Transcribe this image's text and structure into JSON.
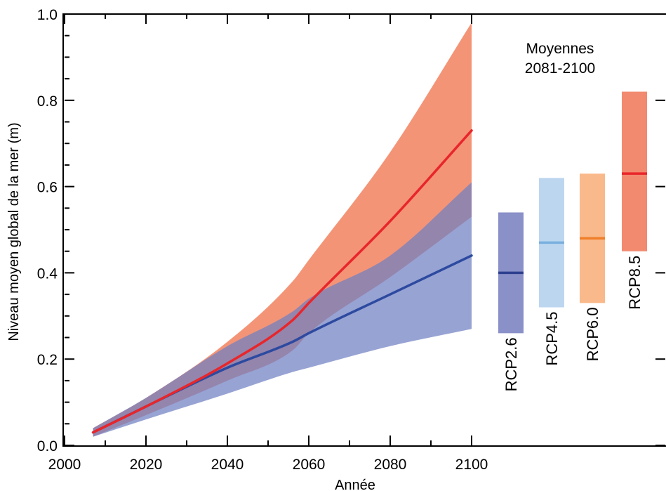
{
  "chart_data": {
    "type": "area",
    "xlabel": "Année",
    "ylabel": "Niveau moyen global de la mer (m)",
    "xlim": [
      2000,
      2104
    ],
    "ylim": [
      0.0,
      1.0
    ],
    "x_ticks": [
      2000,
      2020,
      2040,
      2060,
      2080,
      2100
    ],
    "x_tick_labels": [
      "2000",
      "2020",
      "2040",
      "2060",
      "2080",
      "2100"
    ],
    "y_ticks": [
      0.0,
      0.2,
      0.4,
      0.6,
      0.8,
      1.0
    ],
    "y_tick_labels": [
      "0.0",
      "0.2",
      "0.4",
      "0.6",
      "0.8",
      "1.0"
    ],
    "grid": false,
    "x": [
      2007,
      2020,
      2040,
      2056,
      2060,
      2080,
      2100
    ],
    "series": [
      {
        "name": "RCP8.5",
        "color": "#e8262b",
        "band_color": "#f0704a",
        "mean": [
          0.03,
          0.09,
          0.19,
          0.29,
          0.33,
          0.52,
          0.73
        ],
        "lower": [
          0.02,
          0.07,
          0.15,
          0.22,
          0.26,
          0.39,
          0.53
        ],
        "upper": [
          0.04,
          0.11,
          0.24,
          0.38,
          0.43,
          0.68,
          0.98
        ]
      },
      {
        "name": "RCP2.6",
        "color": "#2d4aa0",
        "band_color": "#6f7fc2",
        "mean": [
          0.03,
          0.09,
          0.18,
          0.24,
          0.26,
          0.35,
          0.44
        ],
        "lower": [
          0.02,
          0.06,
          0.12,
          0.17,
          0.18,
          0.23,
          0.27
        ],
        "upper": [
          0.04,
          0.11,
          0.23,
          0.31,
          0.34,
          0.44,
          0.61
        ]
      }
    ],
    "inset": {
      "title_line1": "Moyennes",
      "title_line2": "2081-2100",
      "bars": [
        {
          "label": "RCP2.6",
          "median": 0.4,
          "low": 0.26,
          "high": 0.54,
          "fill": "#8a90c8",
          "line": "#2d3f8f"
        },
        {
          "label": "RCP4.5",
          "median": 0.47,
          "low": 0.32,
          "high": 0.62,
          "fill": "#bcd6f0",
          "line": "#7ab0de"
        },
        {
          "label": "RCP6.0",
          "median": 0.48,
          "low": 0.33,
          "high": 0.63,
          "fill": "#f9b98a",
          "line": "#f07f2a"
        },
        {
          "label": "RCP8.5",
          "median": 0.63,
          "low": 0.45,
          "high": 0.82,
          "fill": "#f28a70",
          "line": "#e8262b"
        }
      ]
    }
  }
}
